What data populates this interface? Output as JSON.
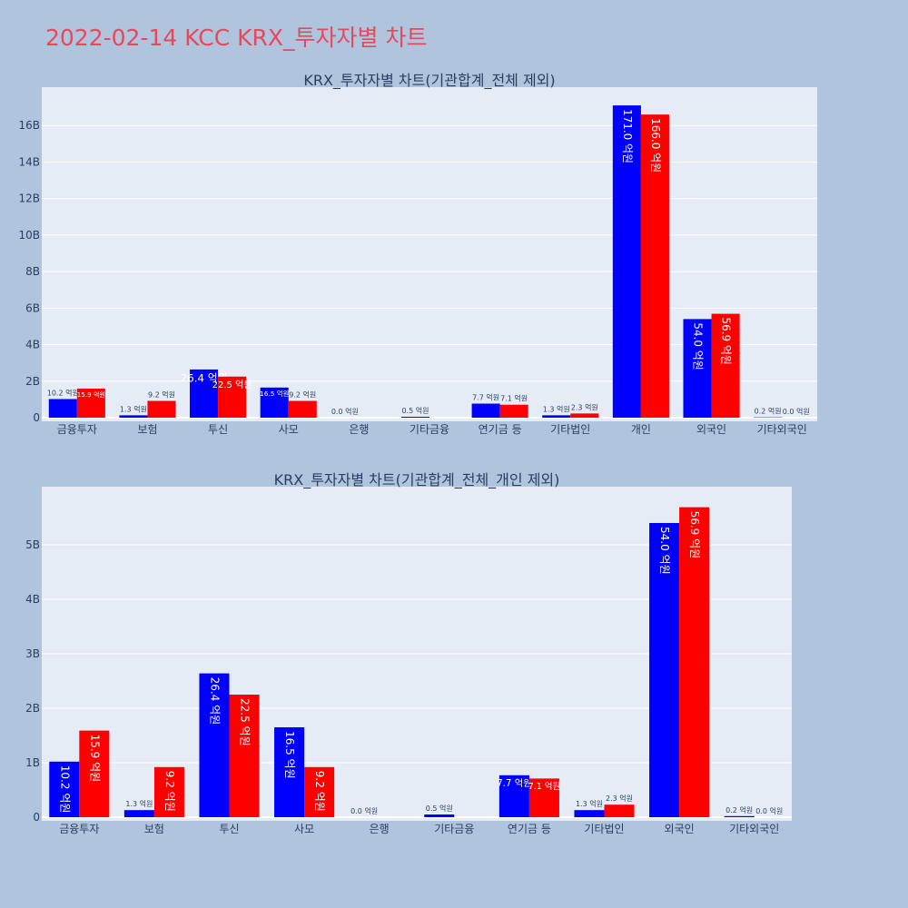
{
  "page_title": "2022-02-14 KCC KRX_투자자별 차트",
  "colors": {
    "background": "#b0c4de",
    "plot_bg": "#e5ecf6",
    "title": "#e8485a",
    "series_a": "#0000ff",
    "series_b": "#ff0000",
    "text": "#2a3f5f"
  },
  "chart_data": [
    {
      "type": "bar",
      "title": "KRX_투자자별 차트(기관합계_전체 제외)",
      "categories": [
        "금융투자",
        "보험",
        "투신",
        "사모",
        "은행",
        "기타금융",
        "연기금 등",
        "기타법인",
        "개인",
        "외국인",
        "기타외국인"
      ],
      "series": [
        {
          "values": [
            1020000000,
            130000000,
            2640000000,
            1650000000,
            0,
            50000000,
            770000000,
            130000000,
            17100000000,
            5400000000,
            20000000
          ],
          "labels": [
            "10.2 억원",
            "1.3 억원",
            "26.4 억원",
            "16.5 억원",
            "0.0 억원",
            "0.5 억원",
            "7.7 억원",
            "1.3 억원",
            "171.0 억원",
            "54.0 억원",
            "0.2 억원"
          ]
        },
        {
          "values": [
            1590000000,
            920000000,
            2250000000,
            920000000,
            0,
            0,
            710000000,
            230000000,
            16600000000,
            5690000000,
            0
          ],
          "labels": [
            "15.9 억원",
            "9.2 억원",
            "22.5 억원",
            "9.2 억원",
            "",
            "",
            "7.1 억원",
            "2.3 억원",
            "166.0 억원",
            "56.9 억원",
            "0.0 억원"
          ]
        }
      ],
      "yticks": [
        0,
        2000000000,
        4000000000,
        6000000000,
        8000000000,
        10000000000,
        12000000000,
        14000000000,
        16000000000
      ],
      "ytick_labels": [
        "0",
        "2B",
        "4B",
        "6B",
        "8B",
        "10B",
        "12B",
        "14B",
        "16B"
      ],
      "ylim": [
        0,
        18000000000
      ],
      "grid": true
    },
    {
      "type": "bar",
      "title": "KRX_투자자별 차트(기관합계_전체_개인 제외)",
      "categories": [
        "금융투자",
        "보험",
        "투신",
        "사모",
        "은행",
        "기타금융",
        "연기금 등",
        "기타법인",
        "외국인",
        "기타외국인"
      ],
      "series": [
        {
          "values": [
            1020000000,
            130000000,
            2640000000,
            1650000000,
            0,
            50000000,
            770000000,
            130000000,
            5400000000,
            20000000
          ],
          "labels": [
            "10.2 억원",
            "1.3 억원",
            "26.4 억원",
            "16.5 억원",
            "0.0 억원",
            "0.5 억원",
            "7.7 억원",
            "1.3 억원",
            "54.0 억원",
            "0.2 억원"
          ]
        },
        {
          "values": [
            1590000000,
            920000000,
            2250000000,
            920000000,
            0,
            0,
            710000000,
            230000000,
            5690000000,
            0
          ],
          "labels": [
            "15.9 억원",
            "9.2 억원",
            "22.5 억원",
            "9.2 억원",
            "",
            "",
            "7.1 억원",
            "2.3 억원",
            "56.9 억원",
            "0.0 억원"
          ]
        }
      ],
      "yticks": [
        0,
        1000000000,
        2000000000,
        3000000000,
        4000000000,
        5000000000
      ],
      "ytick_labels": [
        "0",
        "1B",
        "2B",
        "3B",
        "4B",
        "5B"
      ],
      "ylim": [
        0,
        6000000000
      ],
      "grid": true
    }
  ]
}
